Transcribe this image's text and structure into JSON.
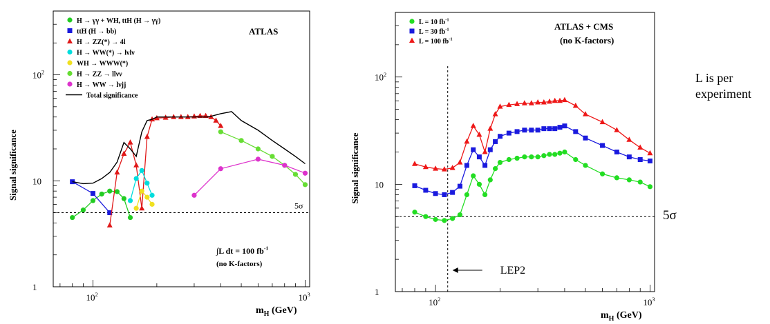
{
  "side_note": {
    "line1": "L is per",
    "line2": "experiment"
  },
  "chart_data": [
    {
      "type": "line",
      "title": "ATLAS",
      "xlabel": "m_H (GeV)",
      "ylabel": "Signal significance",
      "xscale": "log",
      "yscale": "log",
      "xlim": [
        65,
        1050
      ],
      "ylim": [
        1,
        400
      ],
      "x_ticks": [
        {
          "v": 100,
          "base": "10",
          "exp": "2"
        },
        {
          "v": 1000,
          "base": "10",
          "exp": "3"
        }
      ],
      "y_ticks": [
        {
          "v": 1,
          "base": "1",
          "exp": ""
        },
        {
          "v": 10,
          "base": "10",
          "exp": ""
        },
        {
          "v": 100,
          "base": "10",
          "exp": "2"
        }
      ],
      "reference_line": {
        "y": 5,
        "label": "5σ"
      },
      "annotation": {
        "line1": "∫L dt = 100 fb",
        "line1_sup": "-1",
        "line2": "(no K-factors)"
      },
      "legend_position": "top-left",
      "series": [
        {
          "name": "H → γγ + WH, ttH (H → γγ)",
          "color": "#22cc22",
          "marker": "circle",
          "x": [
            80,
            90,
            100,
            110,
            120,
            130,
            140,
            150
          ],
          "y": [
            4.5,
            5.3,
            6.5,
            7.5,
            8.0,
            7.9,
            6.8,
            4.5
          ]
        },
        {
          "name": "ttH (H → bb)",
          "color": "#1a1adc",
          "marker": "square",
          "x": [
            80,
            100,
            120
          ],
          "y": [
            9.8,
            7.6,
            5.0
          ]
        },
        {
          "name": "H → ZZ(*) → 4l",
          "color": "#e01818",
          "marker": "triangle",
          "x": [
            120,
            130,
            140,
            150,
            160,
            170,
            180,
            190,
            200,
            220,
            240,
            260,
            280,
            300,
            320,
            340,
            360,
            380,
            400
          ],
          "y": [
            3.8,
            12,
            18,
            23,
            14,
            5.5,
            26,
            38,
            39,
            39.5,
            40,
            40,
            40,
            40.5,
            41,
            41,
            40,
            37,
            33
          ]
        },
        {
          "name": "H → WW(*) → lνlν",
          "color": "#00dddd",
          "marker": "circle",
          "x": [
            150,
            160,
            170,
            180,
            190
          ],
          "y": [
            6.5,
            10.5,
            12.5,
            9.5,
            7.3
          ]
        },
        {
          "name": "WH → WWW(*)",
          "color": "#f0e020",
          "marker": "circle",
          "x": [
            160,
            170,
            180,
            190
          ],
          "y": [
            5.5,
            8,
            7,
            6
          ]
        },
        {
          "name": "H → ZZ → llνν",
          "color": "#66dd33",
          "marker": "circle",
          "x": [
            400,
            500,
            600,
            700,
            800,
            900,
            1000
          ],
          "y": [
            29,
            24,
            20,
            17,
            14,
            11.5,
            9.2
          ]
        },
        {
          "name": "H → WW → lνjj",
          "color": "#dd33cc",
          "marker": "circle",
          "x": [
            300,
            400,
            600,
            800,
            1000
          ],
          "y": [
            7.3,
            13,
            16,
            14,
            11.8
          ]
        },
        {
          "name": "Total significance",
          "color": "#000000",
          "marker": "none",
          "x": [
            80,
            90,
            100,
            110,
            120,
            130,
            140,
            150,
            160,
            170,
            180,
            190,
            200,
            250,
            300,
            350,
            400,
            450,
            500,
            600,
            700,
            800,
            900,
            1000
          ],
          "y": [
            9.8,
            9.4,
            9.5,
            10.5,
            12,
            15,
            23,
            20,
            17,
            29,
            37,
            38,
            40,
            40,
            40,
            40,
            43,
            45,
            37,
            30,
            24,
            20,
            17,
            14.5
          ]
        }
      ]
    },
    {
      "type": "line",
      "title": "ATLAS + CMS",
      "subtitle": "(no K-factors)",
      "xlabel": "m_H (GeV)",
      "ylabel": "Signal significance",
      "xscale": "log",
      "yscale": "log",
      "xlim": [
        65,
        1050
      ],
      "ylim": [
        1,
        400
      ],
      "x_ticks": [
        {
          "v": 100,
          "base": "10",
          "exp": "2"
        },
        {
          "v": 1000,
          "base": "10",
          "exp": "3"
        }
      ],
      "y_ticks": [
        {
          "v": 1,
          "base": "1",
          "exp": ""
        },
        {
          "v": 10,
          "base": "10",
          "exp": ""
        },
        {
          "v": 100,
          "base": "10",
          "exp": "2"
        }
      ],
      "reference_line": {
        "y": 5,
        "label": "5σ"
      },
      "vertical_line": {
        "x": 114,
        "label": "LEP2"
      },
      "legend_position": "top-left",
      "series": [
        {
          "name": "L = 10 fb",
          "name_sup": "-1",
          "color": "#22dd22",
          "marker": "circle",
          "x": [
            80,
            90,
            100,
            110,
            120,
            130,
            140,
            150,
            160,
            170,
            180,
            190,
            200,
            220,
            240,
            260,
            280,
            300,
            320,
            340,
            360,
            380,
            400,
            450,
            500,
            600,
            700,
            800,
            900,
            1000
          ],
          "y": [
            5.5,
            5.0,
            4.7,
            4.6,
            4.8,
            5.2,
            8,
            12,
            10,
            8,
            11,
            14,
            16,
            17,
            17.5,
            18,
            18,
            18,
            18.5,
            19,
            19,
            19.5,
            20,
            17,
            15,
            12.5,
            11.5,
            11,
            10.5,
            9.5
          ]
        },
        {
          "name": "L = 30 fb",
          "name_sup": "-1",
          "color": "#1a1ade",
          "marker": "square",
          "x": [
            80,
            90,
            100,
            110,
            120,
            130,
            140,
            150,
            160,
            170,
            180,
            190,
            200,
            220,
            240,
            260,
            280,
            300,
            320,
            340,
            360,
            380,
            400,
            450,
            500,
            600,
            700,
            800,
            900,
            1000
          ],
          "y": [
            9.7,
            8.8,
            8.2,
            8,
            8.4,
            9.6,
            15,
            21,
            18,
            15,
            21,
            25,
            28,
            30,
            31,
            32,
            32,
            32,
            33,
            33,
            33,
            34,
            35,
            31,
            27,
            23,
            20,
            18,
            17,
            16.5
          ]
        },
        {
          "name": "L = 100 fb",
          "name_sup": "-1",
          "color": "#ee1818",
          "marker": "triangle",
          "x": [
            80,
            90,
            100,
            110,
            120,
            130,
            140,
            150,
            160,
            170,
            180,
            190,
            200,
            220,
            240,
            260,
            280,
            300,
            320,
            340,
            360,
            380,
            400,
            450,
            500,
            600,
            700,
            800,
            900,
            1000
          ],
          "y": [
            15.5,
            14.5,
            14,
            13.8,
            14.2,
            16,
            25,
            35,
            29,
            20,
            33,
            45,
            53,
            55,
            56,
            57,
            57,
            58,
            58,
            59,
            60,
            60,
            61,
            54,
            45,
            38,
            32,
            26,
            22,
            19.5
          ]
        }
      ]
    }
  ]
}
